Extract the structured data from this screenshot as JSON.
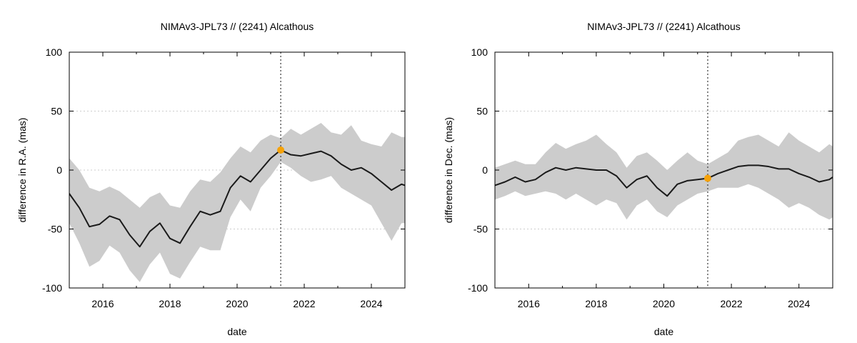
{
  "chart_data": [
    {
      "type": "line",
      "title": "NIMAv3-JPL73 // (2241) Alcathous",
      "xlabel": "date",
      "ylabel": "difference in R.A. (mas)",
      "xlim": [
        2015.0,
        2025.0
      ],
      "ylim": [
        -100,
        100
      ],
      "xticks": [
        2016,
        2018,
        2020,
        2022,
        2024
      ],
      "xtick_labels": [
        "2016",
        "2018",
        "2020",
        "2022",
        "2024"
      ],
      "yticks": [
        -100,
        -50,
        0,
        50,
        100
      ],
      "ytick_labels": [
        "-100",
        "-50",
        "0",
        "50",
        "100"
      ],
      "grid": true,
      "reference_line_x": 2021.3,
      "marker": {
        "x": 2021.3,
        "y": 17
      },
      "x": [
        2015.0,
        2015.3,
        2015.6,
        2015.9,
        2016.2,
        2016.5,
        2016.8,
        2017.1,
        2017.4,
        2017.7,
        2018.0,
        2018.3,
        2018.6,
        2018.9,
        2019.2,
        2019.5,
        2019.8,
        2020.1,
        2020.4,
        2020.7,
        2021.0,
        2021.3,
        2021.6,
        2021.9,
        2022.2,
        2022.5,
        2022.8,
        2023.1,
        2023.4,
        2023.7,
        2024.0,
        2024.3,
        2024.6,
        2024.9,
        2025.0
      ],
      "series": [
        {
          "name": "difference",
          "values": [
            -20,
            -32,
            -48,
            -46,
            -39,
            -42,
            -55,
            -65,
            -52,
            -45,
            -58,
            -62,
            -48,
            -35,
            -38,
            -35,
            -15,
            -5,
            -10,
            0,
            10,
            17,
            13,
            12,
            14,
            16,
            12,
            5,
            0,
            2,
            -3,
            -10,
            -17,
            -12,
            -13
          ],
          "upper": [
            10,
            0,
            -15,
            -18,
            -14,
            -18,
            -25,
            -32,
            -23,
            -19,
            -30,
            -32,
            -18,
            -8,
            -10,
            -2,
            10,
            20,
            15,
            25,
            30,
            27,
            35,
            30,
            35,
            40,
            32,
            30,
            38,
            25,
            22,
            20,
            32,
            28,
            28
          ],
          "lower": [
            -45,
            -62,
            -82,
            -77,
            -64,
            -70,
            -85,
            -95,
            -80,
            -70,
            -88,
            -92,
            -78,
            -65,
            -68,
            -68,
            -40,
            -25,
            -35,
            -15,
            -5,
            7,
            2,
            -5,
            -10,
            -8,
            -5,
            -15,
            -20,
            -25,
            -30,
            -45,
            -60,
            -45,
            -45
          ]
        }
      ],
      "colors": {
        "band": "#cccccc",
        "line": "#1a1a1a",
        "marker": "#f5a20a",
        "ref_line": "#444444"
      }
    },
    {
      "type": "line",
      "title": "NIMAv3-JPL73 // (2241) Alcathous",
      "xlabel": "date",
      "ylabel": "difference in Dec. (mas)",
      "xlim": [
        2015.0,
        2025.0
      ],
      "ylim": [
        -100,
        100
      ],
      "xticks": [
        2016,
        2018,
        2020,
        2022,
        2024
      ],
      "xtick_labels": [
        "2016",
        "2018",
        "2020",
        "2022",
        "2024"
      ],
      "yticks": [
        -100,
        -50,
        0,
        50,
        100
      ],
      "ytick_labels": [
        "-100",
        "-50",
        "0",
        "50",
        "100"
      ],
      "grid": true,
      "reference_line_x": 2021.3,
      "marker": {
        "x": 2021.3,
        "y": -7
      },
      "x": [
        2015.0,
        2015.3,
        2015.6,
        2015.9,
        2016.2,
        2016.5,
        2016.8,
        2017.1,
        2017.4,
        2017.7,
        2018.0,
        2018.3,
        2018.6,
        2018.9,
        2019.2,
        2019.5,
        2019.8,
        2020.1,
        2020.4,
        2020.7,
        2021.0,
        2021.3,
        2021.6,
        2021.9,
        2022.2,
        2022.5,
        2022.8,
        2023.1,
        2023.4,
        2023.7,
        2024.0,
        2024.3,
        2024.6,
        2024.9,
        2025.0
      ],
      "series": [
        {
          "name": "difference",
          "values": [
            -13,
            -10,
            -6,
            -10,
            -8,
            -2,
            2,
            0,
            2,
            1,
            0,
            0,
            -5,
            -15,
            -8,
            -5,
            -15,
            -22,
            -12,
            -9,
            -8,
            -7,
            -3,
            0,
            3,
            4,
            4,
            3,
            1,
            1,
            -3,
            -6,
            -10,
            -8,
            -6
          ],
          "upper": [
            2,
            5,
            8,
            5,
            5,
            15,
            23,
            18,
            22,
            25,
            30,
            22,
            15,
            2,
            12,
            15,
            8,
            0,
            8,
            15,
            8,
            5,
            10,
            15,
            25,
            28,
            30,
            25,
            20,
            32,
            25,
            20,
            15,
            22,
            20
          ],
          "lower": [
            -25,
            -22,
            -18,
            -22,
            -20,
            -18,
            -20,
            -25,
            -20,
            -25,
            -30,
            -25,
            -28,
            -42,
            -30,
            -25,
            -35,
            -40,
            -30,
            -25,
            -20,
            -18,
            -15,
            -15,
            -15,
            -12,
            -15,
            -20,
            -25,
            -32,
            -28,
            -32,
            -38,
            -42,
            -40
          ]
        }
      ],
      "colors": {
        "band": "#cccccc",
        "line": "#1a1a1a",
        "marker": "#f5a20a",
        "ref_line": "#444444"
      }
    }
  ]
}
